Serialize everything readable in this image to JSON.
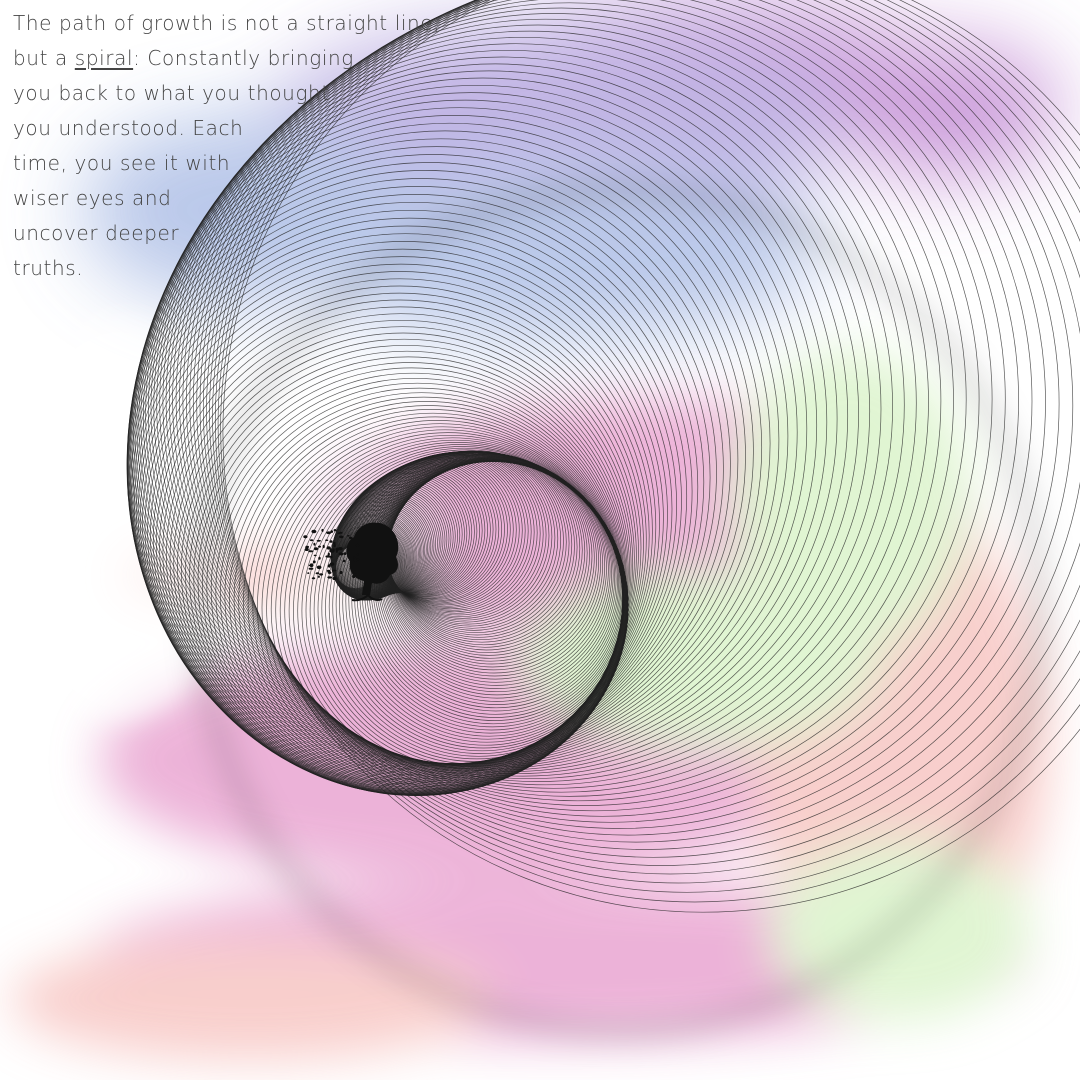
{
  "quote": {
    "lines": [
      "The path of growth is not a straight line,",
      "",
      "you back to what you thought",
      "you understood. Each",
      "time, you see it with",
      "wiser eyes and",
      "uncover deeper",
      "truths."
    ],
    "line2_prefix": "but a ",
    "line2_emphasis": "spiral",
    "line2_suffix": ": Constantly bringing"
  },
  "palette": {
    "purple": "#c58fd6",
    "lavender": "#b7a7e0",
    "blue": "#aebfe6",
    "pink": "#e8a0cf",
    "peach": "#f7c3c0",
    "green": "#d9f3c8",
    "line": "#222222"
  },
  "illustration": {
    "center_icon": "tree-head-silhouette-icon"
  }
}
